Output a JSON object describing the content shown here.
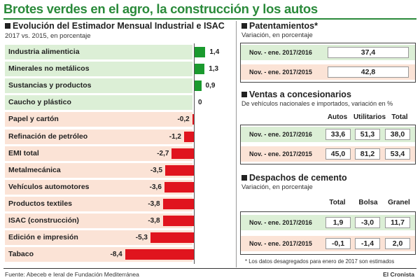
{
  "title": "Brotes verdes en el agro, la construcción y los autos",
  "left_section": {
    "title": "Evolución del Estimador Mensual Industrial e ISAC",
    "subtitle": "2017 vs. 2015, en porcentaje"
  },
  "chart_data": {
    "type": "bar",
    "orientation": "horizontal",
    "categories": [
      "Industria alimenticia",
      "Minerales no metálicos",
      "Sustancias y productos",
      "Caucho y plástico",
      "Papel y cartón",
      "Refinación de petróleo",
      "EMI total",
      "Metalmecánica",
      "Vehículos automotores",
      "Productos textiles",
      "ISAC (construcción)",
      "Edición e impresión",
      "Tabaco"
    ],
    "values": [
      1.4,
      1.3,
      0.9,
      0,
      -0.2,
      -1.2,
      -2.7,
      -3.5,
      -3.6,
      -3.8,
      -3.8,
      -5.3,
      -8.4
    ],
    "value_labels": [
      "1,4",
      "1,3",
      "0,9",
      "0",
      "-0,2",
      "-1,2",
      "-2,7",
      "-3,5",
      "-3,6",
      "-3,8",
      "-3,8",
      "-5,3",
      "-8,4"
    ],
    "positive_color": "#1a9a2e",
    "negative_color": "#e0141e",
    "positive_bg": "#dcefd6",
    "negative_bg": "#fbe3d6",
    "xlim": [
      -8.4,
      1.4
    ]
  },
  "patentamientos": {
    "title": "Patentamientos*",
    "subtitle": "Variación, en porcentaje",
    "rows": [
      {
        "label": "Nov. - ene. 2017/2016",
        "value": "37,4"
      },
      {
        "label": "Nov. - ene. 2017/2015",
        "value": "42,8"
      }
    ]
  },
  "ventas": {
    "title": "Ventas a concesionarios",
    "subtitle": "De vehículos nacionales e importados, variación en %",
    "columns": [
      "Autos",
      "Utilitarios",
      "Total"
    ],
    "rows": [
      {
        "label": "Nov. - ene. 2017/2016",
        "values": [
          "33,6",
          "51,3",
          "38,0"
        ]
      },
      {
        "label": "Nov. - ene. 2017/2015",
        "values": [
          "45,0",
          "81,2",
          "53,4"
        ]
      }
    ]
  },
  "despachos": {
    "title": "Despachos de cemento",
    "subtitle": "Variación, en porcentaje",
    "columns": [
      "Total",
      "Bolsa",
      "Granel"
    ],
    "rows": [
      {
        "label": "Nov. - ene. 2017/2016",
        "values": [
          "1,9",
          "-3,0",
          "11,7"
        ]
      },
      {
        "label": "Nov. - ene. 2017/2015",
        "values": [
          "-0,1",
          "-1,4",
          "2,0"
        ]
      }
    ]
  },
  "note": "* Los datos desagregados para enero de 2017 son estimados",
  "source": "Fuente: Abeceb e Ieral de Fundación Mediterránea",
  "brand": "El Cronista",
  "colors": {
    "green_row": "#dcefd6",
    "pink_row": "#fbe3d6",
    "accent": "#2a8a3a"
  }
}
